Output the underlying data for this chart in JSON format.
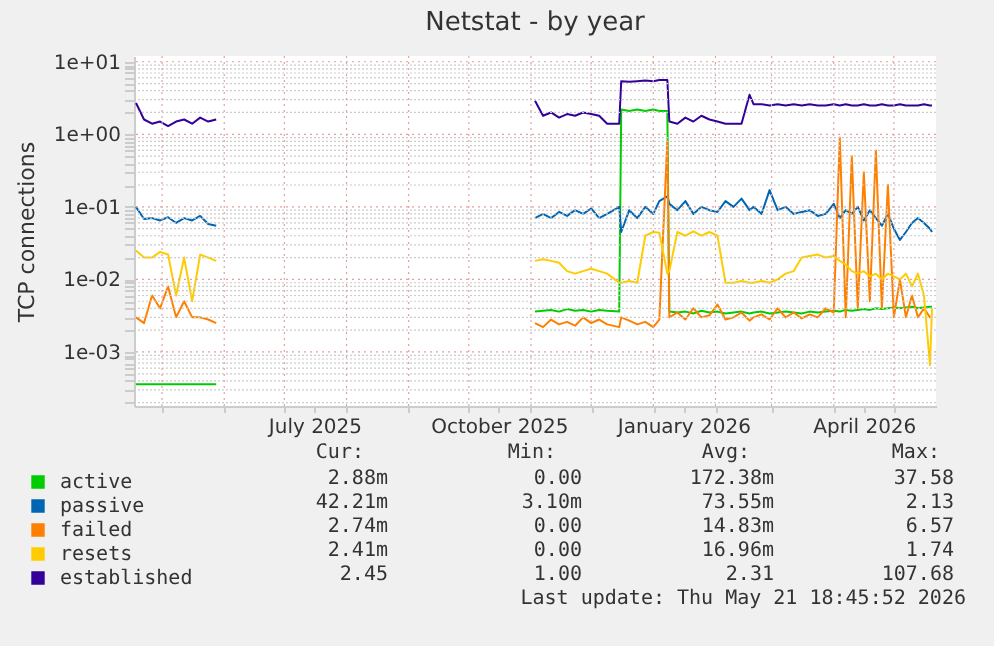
{
  "chart_data": {
    "type": "line",
    "title": "Netstat - by year",
    "ylabel": "TCP connections",
    "log": true,
    "grid": true,
    "legend": "bottom",
    "xlim": [
      "2025-04-17",
      "2026-05-22"
    ],
    "xticks": [
      {
        "value": "2025-05-01",
        "label": null
      },
      {
        "value": "2025-06-01",
        "label": null
      },
      {
        "value": "2025-07-01",
        "label": null
      },
      {
        "value": "2025-07-16",
        "label": "July 2025"
      },
      {
        "value": "2025-08-01",
        "label": null
      },
      {
        "value": "2025-09-01",
        "label": null
      },
      {
        "value": "2025-10-01",
        "label": null
      },
      {
        "value": "2025-10-16",
        "label": "October 2025"
      },
      {
        "value": "2025-11-01",
        "label": null
      },
      {
        "value": "2025-12-01",
        "label": null
      },
      {
        "value": "2026-01-01",
        "label": null
      },
      {
        "value": "2026-01-16",
        "label": "January 2026"
      },
      {
        "value": "2026-02-01",
        "label": null
      },
      {
        "value": "2026-03-01",
        "label": null
      },
      {
        "value": "2026-04-01",
        "label": null
      },
      {
        "value": "2026-04-16",
        "label": "April 2026"
      },
      {
        "value": "2026-05-01",
        "label": null
      }
    ],
    "ylim": [
      0.00018,
      12
    ],
    "yticks": [
      {
        "value": 0.0002,
        "label": null
      },
      {
        "value": 0.0003,
        "label": null
      },
      {
        "value": 0.0004,
        "label": null
      },
      {
        "value": 0.0005,
        "label": null
      },
      {
        "value": 0.0006,
        "label": null
      },
      {
        "value": 0.0007,
        "label": null
      },
      {
        "value": 0.0008,
        "label": null
      },
      {
        "value": 0.0009,
        "label": null
      },
      {
        "value": 0.001,
        "label": "1e-03"
      },
      {
        "value": 0.002,
        "label": null
      },
      {
        "value": 0.003,
        "label": null
      },
      {
        "value": 0.004,
        "label": null
      },
      {
        "value": 0.005,
        "label": null
      },
      {
        "value": 0.006,
        "label": null
      },
      {
        "value": 0.007,
        "label": null
      },
      {
        "value": 0.008,
        "label": null
      },
      {
        "value": 0.009,
        "label": null
      },
      {
        "value": 0.01,
        "label": "1e-02"
      },
      {
        "value": 0.02,
        "label": null
      },
      {
        "value": 0.03,
        "label": null
      },
      {
        "value": 0.04,
        "label": null
      },
      {
        "value": 0.05,
        "label": null
      },
      {
        "value": 0.06,
        "label": null
      },
      {
        "value": 0.07,
        "label": null
      },
      {
        "value": 0.08,
        "label": null
      },
      {
        "value": 0.09,
        "label": null
      },
      {
        "value": 0.1,
        "label": "1e-01"
      },
      {
        "value": 0.2,
        "label": null
      },
      {
        "value": 0.3,
        "label": null
      },
      {
        "value": 0.4,
        "label": null
      },
      {
        "value": 0.5,
        "label": null
      },
      {
        "value": 0.6,
        "label": null
      },
      {
        "value": 0.7,
        "label": null
      },
      {
        "value": 0.8,
        "label": null
      },
      {
        "value": 0.9,
        "label": null
      },
      {
        "value": 1,
        "label": "1e+00"
      },
      {
        "value": 2,
        "label": null
      },
      {
        "value": 3,
        "label": null
      },
      {
        "value": 4,
        "label": null
      },
      {
        "value": 5,
        "label": null
      },
      {
        "value": 6,
        "label": null
      },
      {
        "value": 7,
        "label": null
      },
      {
        "value": 8,
        "label": null
      },
      {
        "value": 9,
        "label": null
      },
      {
        "value": 10,
        "label": "1e+01"
      }
    ],
    "x": [
      "2025-04-18",
      "2025-04-22",
      "2025-04-26",
      "2025-04-30",
      "2025-05-04",
      "2025-05-08",
      "2025-05-12",
      "2025-05-16",
      "2025-05-20",
      "2025-05-24",
      "2025-05-28",
      "2025-08-01",
      "2025-11-03",
      "2025-11-07",
      "2025-11-11",
      "2025-11-15",
      "2025-11-19",
      "2025-11-23",
      "2025-11-27",
      "2025-12-01",
      "2025-12-05",
      "2025-12-09",
      "2025-12-15",
      "2025-12-16",
      "2025-12-20",
      "2025-12-24",
      "2025-12-28",
      "2026-01-01",
      "2026-01-04",
      "2026-01-08",
      "2026-01-09",
      "2026-01-13",
      "2026-01-17",
      "2026-01-21",
      "2026-01-25",
      "2026-01-29",
      "2026-02-02",
      "2026-02-06",
      "2026-02-10",
      "2026-02-14",
      "2026-02-18",
      "2026-02-20",
      "2026-02-24",
      "2026-02-28",
      "2026-03-04",
      "2026-03-08",
      "2026-03-12",
      "2026-03-16",
      "2026-03-20",
      "2026-03-24",
      "2026-03-28",
      "2026-04-01",
      "2026-04-04",
      "2026-04-07",
      "2026-04-10",
      "2026-04-13",
      "2026-04-16",
      "2026-04-19",
      "2026-04-22",
      "2026-04-25",
      "2026-04-28",
      "2026-05-01",
      "2026-05-04",
      "2026-05-07",
      "2026-05-10",
      "2026-05-13",
      "2026-05-16",
      "2026-05-19",
      "2026-05-20"
    ],
    "series": [
      {
        "name": "active",
        "color": "#00cc00",
        "values": [
          0.00036,
          0.00036,
          0.00036,
          0.00036,
          0.00036,
          0.00036,
          0.00036,
          0.00036,
          0.00036,
          0.00036,
          0.00036,
          null,
          0.0036,
          0.0037,
          0.0038,
          0.0036,
          0.0039,
          0.0037,
          0.0038,
          0.0036,
          0.0038,
          0.0037,
          0.0036,
          2.2,
          2.1,
          2.2,
          2.1,
          2.2,
          2.1,
          2.1,
          0.0036,
          0.0035,
          0.0036,
          0.0034,
          0.0037,
          0.0035,
          0.0036,
          0.0034,
          0.0035,
          0.0036,
          0.0034,
          0.0035,
          0.0036,
          0.0034,
          0.0035,
          0.0036,
          0.0035,
          0.0034,
          0.0036,
          0.0035,
          0.0036,
          0.0037,
          0.0036,
          0.0038,
          0.0037,
          0.0038,
          0.0039,
          0.0038,
          0.004,
          0.0039,
          0.004,
          0.0041,
          0.004,
          0.0041,
          0.0042,
          0.004,
          0.0041,
          0.0042,
          0.0042
        ]
      },
      {
        "name": "passive",
        "color": "#0066b3",
        "values": [
          0.1,
          0.068,
          0.07,
          0.065,
          0.072,
          0.06,
          0.07,
          0.065,
          0.075,
          0.058,
          0.055,
          null,
          0.07,
          0.08,
          0.07,
          0.085,
          0.075,
          0.09,
          0.08,
          0.095,
          0.07,
          0.08,
          0.1,
          0.045,
          0.09,
          0.07,
          0.1,
          0.08,
          0.12,
          0.14,
          0.11,
          0.09,
          0.12,
          0.08,
          0.1,
          0.09,
          0.085,
          0.12,
          0.1,
          0.13,
          0.09,
          0.1,
          0.08,
          0.17,
          0.09,
          0.1,
          0.08,
          0.085,
          0.09,
          0.075,
          0.08,
          0.11,
          0.07,
          0.09,
          0.08,
          0.1,
          0.065,
          0.09,
          0.07,
          0.055,
          0.08,
          0.05,
          0.035,
          0.045,
          0.06,
          0.07,
          0.06,
          0.05,
          0.045
        ]
      },
      {
        "name": "failed",
        "color": "#ff8000",
        "values": [
          0.003,
          0.0025,
          0.006,
          0.004,
          0.008,
          0.003,
          0.005,
          0.003,
          0.003,
          0.0028,
          0.0025,
          null,
          0.0025,
          0.0022,
          0.0028,
          0.0024,
          0.0026,
          0.0023,
          0.003,
          0.0025,
          0.0028,
          0.0024,
          0.0022,
          0.003,
          0.0027,
          0.0024,
          0.0026,
          0.0022,
          0.0028,
          0.8,
          0.003,
          0.0035,
          0.0028,
          0.004,
          0.003,
          0.0032,
          0.0045,
          0.0028,
          0.003,
          0.0035,
          0.0027,
          0.003,
          0.0033,
          0.0028,
          0.004,
          0.003,
          0.0035,
          0.0029,
          0.0033,
          0.003,
          0.004,
          0.0035,
          0.9,
          0.003,
          0.5,
          0.004,
          0.3,
          0.005,
          0.6,
          0.004,
          0.2,
          0.003,
          0.01,
          0.003,
          0.006,
          0.003,
          0.004,
          0.003,
          0.003
        ]
      },
      {
        "name": "resets",
        "color": "#ffcc00",
        "values": [
          0.025,
          0.02,
          0.02,
          0.024,
          0.022,
          0.006,
          0.02,
          0.005,
          0.022,
          0.02,
          0.018,
          null,
          0.018,
          0.019,
          0.018,
          0.017,
          0.013,
          0.012,
          0.013,
          0.014,
          0.013,
          0.012,
          0.009,
          0.009,
          0.0095,
          0.009,
          0.04,
          0.045,
          0.044,
          0.012,
          0.013,
          0.045,
          0.04,
          0.046,
          0.04,
          0.045,
          0.04,
          0.009,
          0.009,
          0.0095,
          0.009,
          0.009,
          0.0095,
          0.009,
          0.01,
          0.012,
          0.013,
          0.02,
          0.021,
          0.022,
          0.02,
          0.021,
          0.018,
          0.016,
          0.013,
          0.012,
          0.013,
          0.011,
          0.012,
          0.01,
          0.012,
          0.011,
          0.01,
          0.012,
          0.008,
          0.012,
          0.006,
          0.00066,
          0.004
        ]
      },
      {
        "name": "established",
        "color": "#330099",
        "values": [
          2.7,
          1.6,
          1.4,
          1.5,
          1.3,
          1.5,
          1.6,
          1.4,
          1.7,
          1.5,
          1.6,
          null,
          2.9,
          1.8,
          2.0,
          1.7,
          1.9,
          1.8,
          2.0,
          1.9,
          1.8,
          1.4,
          1.4,
          5.4,
          5.3,
          5.4,
          5.5,
          5.4,
          5.6,
          5.6,
          1.5,
          1.4,
          1.7,
          1.5,
          1.8,
          1.6,
          1.5,
          1.4,
          1.4,
          1.4,
          3.5,
          2.6,
          2.6,
          2.5,
          2.6,
          2.5,
          2.6,
          2.5,
          2.6,
          2.5,
          2.5,
          2.6,
          2.5,
          2.6,
          2.5,
          2.5,
          2.6,
          2.5,
          2.5,
          2.6,
          2.5,
          2.5,
          2.6,
          2.5,
          2.5,
          2.5,
          2.6,
          2.5,
          2.5
        ]
      }
    ],
    "annotations": [
      "Cur:",
      "Min:",
      "Avg:",
      "Max:",
      "2.88m",
      "0.00",
      "172.38m",
      "37.58",
      "42.21m",
      "3.10m",
      "73.55m",
      "2.13",
      "2.74m",
      "0.00",
      "14.83m",
      "6.57",
      "2.41m",
      "0.00",
      "16.96m",
      "1.74",
      "2.45",
      "1.00",
      "2.31",
      "107.68",
      "Last update: Thu May 21 18:45:52 2026"
    ]
  }
}
